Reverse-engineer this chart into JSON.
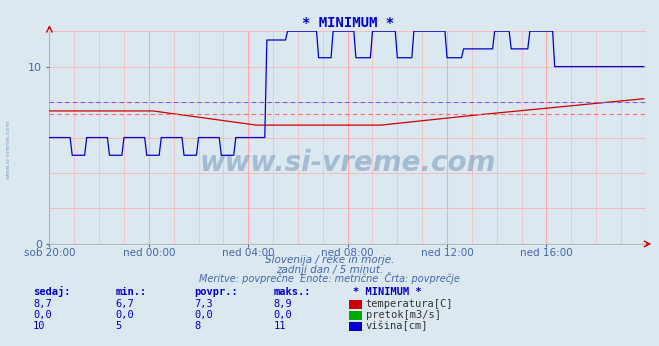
{
  "title": "* MINIMUM *",
  "title_color": "#0000cc",
  "bg_color": "#dce8f0",
  "plot_bg_color": "#dce8f0",
  "grid_color": "#ffbbbb",
  "xlabel_color": "#4466aa",
  "tick_color": "#4466aa",
  "xlim": [
    0,
    288
  ],
  "ylim": [
    0,
    12
  ],
  "yticks": [
    0,
    10
  ],
  "xtick_labels": [
    "sob 20:00",
    "ned 00:00",
    "ned 04:00",
    "ned 08:00",
    "ned 12:00",
    "ned 16:00"
  ],
  "xtick_positions": [
    0,
    48,
    96,
    144,
    192,
    240
  ],
  "temp_avg": 7.3,
  "height_avg": 8.0,
  "temp_color": "#cc0000",
  "height_color": "#0000cc",
  "pretok_color": "#00aa00",
  "avg_temp_color": "#ff6666",
  "avg_height_color": "#6666ff",
  "subtitle1": "Slovenija / reke in morje.",
  "subtitle2": "zadnji dan / 5 minut.",
  "subtitle3": "Meritve: povprečne  Enote: metrične  Črta: povprečje",
  "table_headers": [
    "sedaj:",
    "min.:",
    "povpr.:",
    "maks.:",
    "* MINIMUM *"
  ],
  "table_rows": [
    [
      "8,7",
      "6,7",
      "7,3",
      "8,9",
      "temperatura[C]",
      "#cc0000"
    ],
    [
      "0,0",
      "0,0",
      "0,0",
      "0,0",
      "pretok[m3/s]",
      "#00aa00"
    ],
    [
      "10",
      "5",
      "8",
      "11",
      "višina[cm]",
      "#0000cc"
    ]
  ],
  "watermark": "www.si-vreme.com",
  "watermark_color": "#7799bb",
  "side_text": "www.si-vreme.com",
  "side_text_color": "#7799bb"
}
